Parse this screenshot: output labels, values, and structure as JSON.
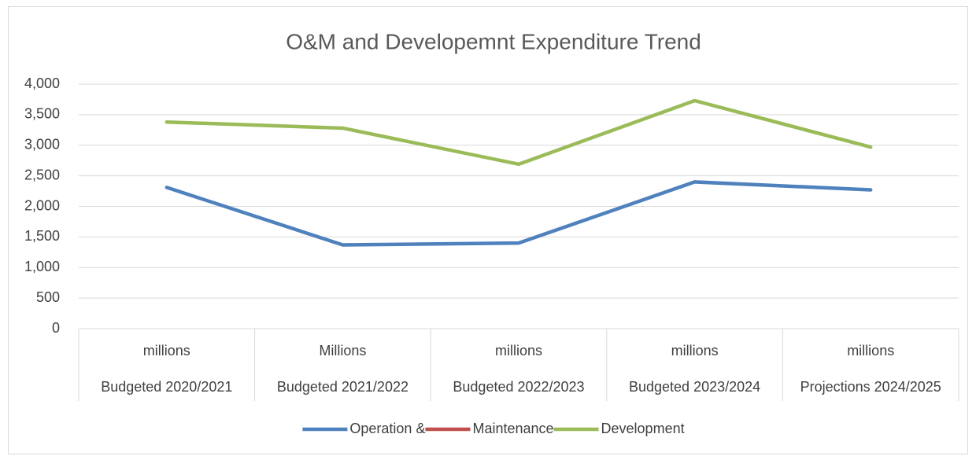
{
  "chart_data": {
    "type": "line",
    "title": "O&M and Developemnt Expenditure Trend",
    "categories": [
      "Budgeted 2020/2021",
      "Budgeted 2021/2022",
      "Budgeted 2022/2023",
      "Budgeted 2023/2024",
      "Projections 2024/2025"
    ],
    "sub_categories": [
      "millions",
      "Millions",
      "millions",
      "millions",
      "millions"
    ],
    "series": [
      {
        "name": "Operation &",
        "color": "#4f81bd",
        "values": [
          2310,
          1370,
          1400,
          2400,
          2270
        ]
      },
      {
        "name": "Maintenance",
        "color": "#c0504d",
        "values": [
          null,
          null,
          null,
          null,
          null
        ]
      },
      {
        "name": "Development",
        "color": "#9bbb59",
        "values": [
          3380,
          3280,
          2690,
          3730,
          2970
        ]
      }
    ],
    "ylim": [
      0,
      4000
    ],
    "yticks": [
      0,
      500,
      {
        "value": 1000,
        "label": "1,000"
      },
      {
        "value": 1500,
        "label": "1,500"
      },
      {
        "value": 2000,
        "label": "2,000"
      },
      {
        "value": 2500,
        "label": "2,500"
      },
      {
        "value": 3000,
        "label": "3,000"
      },
      {
        "value": 3500,
        "label": "3,500"
      },
      {
        "value": 4000,
        "label": "4,000"
      }
    ],
    "grid": true,
    "legend": "bottom"
  }
}
